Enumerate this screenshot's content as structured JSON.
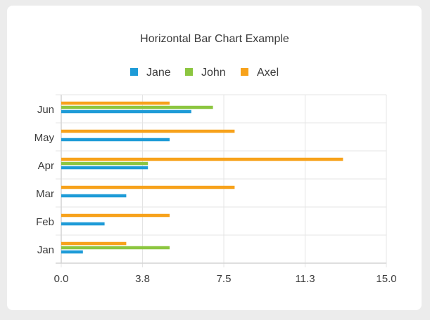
{
  "chart_data": {
    "type": "bar",
    "orientation": "horizontal",
    "title": "Horizontal Bar Chart Example",
    "xlabel": "",
    "ylabel": "",
    "categories": [
      "Jan",
      "Feb",
      "Mar",
      "Apr",
      "May",
      "Jun"
    ],
    "series": [
      {
        "name": "Jane",
        "color": "#1e9bd7",
        "values": [
          1,
          2,
          3,
          4,
          5,
          6
        ]
      },
      {
        "name": "John",
        "color": "#8cc640",
        "values": [
          5,
          0,
          0,
          4,
          0,
          7
        ]
      },
      {
        "name": "Axel",
        "color": "#f7a21b",
        "values": [
          3,
          5,
          8,
          13,
          8,
          5
        ]
      }
    ],
    "xlim": [
      0,
      15
    ],
    "xticks": [
      "0.0",
      "3.8",
      "7.5",
      "11.3",
      "15.0"
    ],
    "grid": true,
    "legend_position": "top"
  }
}
